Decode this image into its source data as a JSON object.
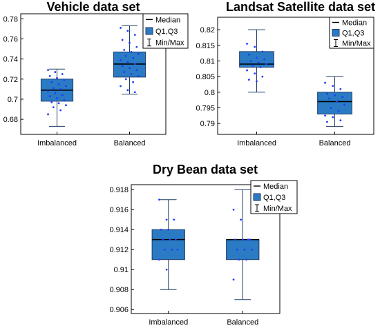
{
  "chart_data": [
    {
      "type": "box",
      "title": "Vehicle data set",
      "categories": [
        "Imbalanced",
        "Balanced"
      ],
      "ylim": [
        0.665,
        0.785
      ],
      "yticks": [
        0.68,
        0.7,
        0.72,
        0.74,
        0.76,
        0.78
      ],
      "ytick_labels": [
        "0.68",
        "0.7",
        "0.72",
        "0.74",
        "0.76",
        "0.78"
      ],
      "legend": [
        "Median",
        "Q1,Q3",
        "Min/Max"
      ],
      "legend_position": "top-right",
      "box_color": "#2b7bc4",
      "point_color": "#1e3cff",
      "series": [
        {
          "category": "Imbalanced",
          "min": 0.673,
          "q1": 0.698,
          "median": 0.709,
          "q3": 0.72,
          "max": 0.73,
          "points": [
            0.729,
            0.727,
            0.725,
            0.723,
            0.721,
            0.719,
            0.717,
            0.715,
            0.713,
            0.711,
            0.71,
            0.708,
            0.706,
            0.704,
            0.703,
            0.701,
            0.699,
            0.697,
            0.696,
            0.694,
            0.692,
            0.689,
            0.685
          ]
        },
        {
          "category": "Balanced",
          "min": 0.705,
          "q1": 0.722,
          "median": 0.735,
          "q3": 0.747,
          "max": 0.773,
          "points": [
            0.771,
            0.768,
            0.764,
            0.759,
            0.756,
            0.752,
            0.749,
            0.747,
            0.745,
            0.743,
            0.741,
            0.739,
            0.737,
            0.735,
            0.733,
            0.731,
            0.729,
            0.727,
            0.725,
            0.723,
            0.72,
            0.717,
            0.713,
            0.709,
            0.707
          ]
        }
      ]
    },
    {
      "type": "box",
      "title": "Landsat Satellite data set",
      "categories": [
        "Imbalanced",
        "Balanced"
      ],
      "ylim": [
        0.7865,
        0.824
      ],
      "yticks": [
        0.79,
        0.795,
        0.8,
        0.805,
        0.81,
        0.815,
        0.82
      ],
      "ytick_labels": [
        "0.79",
        "0.795",
        "0.8",
        "0.805",
        "0.81",
        "0.815",
        "0.82"
      ],
      "legend": [
        "Median",
        "Q1,Q3",
        "Min/Max"
      ],
      "legend_position": "top-right",
      "box_color": "#2b7bc4",
      "point_color": "#1e3cff",
      "series": [
        {
          "category": "Imbalanced",
          "min": 0.8,
          "q1": 0.808,
          "median": 0.809,
          "q3": 0.813,
          "max": 0.82,
          "points": [
            0.8155,
            0.8145,
            0.813,
            0.812,
            0.811,
            0.8105,
            0.81,
            0.8095,
            0.809,
            0.8085,
            0.808,
            0.807,
            0.806,
            0.805,
            0.804,
            0.8035
          ]
        },
        {
          "category": "Balanced",
          "min": 0.789,
          "q1": 0.793,
          "median": 0.797,
          "q3": 0.8,
          "max": 0.805,
          "points": [
            0.803,
            0.802,
            0.801,
            0.7995,
            0.799,
            0.7985,
            0.798,
            0.797,
            0.796,
            0.795,
            0.794,
            0.7925,
            0.792,
            0.791,
            0.7905
          ]
        }
      ]
    },
    {
      "type": "box",
      "title": "Dry Bean data set",
      "categories": [
        "Imbalanced",
        "Balanced"
      ],
      "ylim": [
        0.9056,
        0.9185
      ],
      "yticks": [
        0.906,
        0.908,
        0.91,
        0.912,
        0.914,
        0.916,
        0.918
      ],
      "ytick_labels": [
        "0.906",
        "0.908",
        "0.91",
        "0.912",
        "0.914",
        "0.916",
        "0.918"
      ],
      "legend": [
        "Median",
        "Q1,Q3",
        "Min/Max"
      ],
      "legend_position": "top-right",
      "box_color": "#2b7bc4",
      "point_color": "#1e3cff",
      "series": [
        {
          "category": "Imbalanced",
          "min": 0.908,
          "q1": 0.911,
          "median": 0.913,
          "q3": 0.914,
          "max": 0.917,
          "points": [
            0.917,
            0.915,
            0.915,
            0.914,
            0.914,
            0.913,
            0.913,
            0.913,
            0.912,
            0.912,
            0.912,
            0.911,
            0.91
          ]
        },
        {
          "category": "Balanced",
          "min": 0.907,
          "q1": 0.911,
          "median": 0.913,
          "q3": 0.913,
          "max": 0.918,
          "points": [
            0.916,
            0.915,
            0.913,
            0.913,
            0.913,
            0.913,
            0.912,
            0.912,
            0.912,
            0.911,
            0.911,
            0.909
          ]
        }
      ]
    }
  ]
}
